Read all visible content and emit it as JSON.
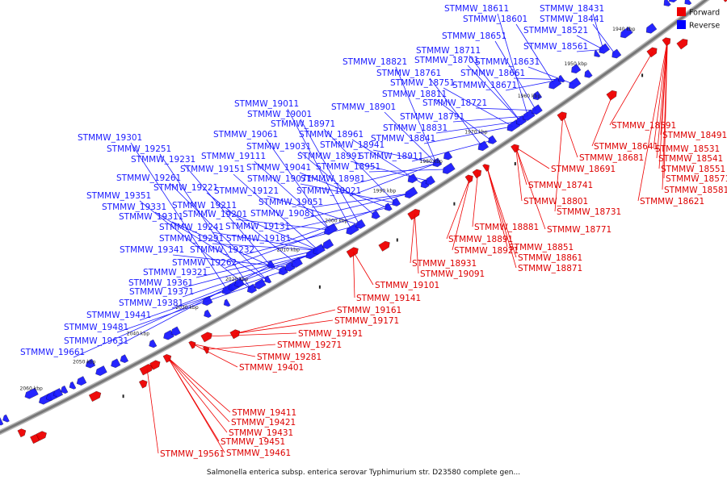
{
  "caption": "Salmonella enterica subsp. enterica serovar Typhimurium str. D23580 complete gen...",
  "legend": [
    {
      "label": "Forward",
      "color": "#ee0000"
    },
    {
      "label": "Reverse",
      "color": "#0000ff"
    }
  ],
  "colors": {
    "forward": "#ee0000",
    "reverse": "#1a1aff",
    "backbone": "#777777"
  },
  "ticks": [
    "1940 kbp",
    "1950 kbp",
    "1960 kbp",
    "1970 kbp",
    "1980 kbp",
    "1990 kbp",
    "2000 kbp",
    "2010 kbp",
    "2020 kbp",
    "2030 kbp",
    "2040 kbp",
    "2050 kbp",
    "2060 kbp"
  ],
  "reverse_genes": [
    "STMMW_18611",
    "STMMW_18431",
    "STMMW_18601",
    "STMMW_18441",
    "STMMW_18651",
    "STMMW_18521",
    "STMMW_18561",
    "STMMW_18711",
    "STMMW_18821",
    "STMMW_18701",
    "STMMW_18631",
    "STMMW_18761",
    "STMMW_18661",
    "STMMW_18751",
    "STMMW_18671",
    "STMMW_18811",
    "STMMW_19011",
    "STMMW_18721",
    "STMMW_18901",
    "STMMW_19001",
    "STMMW_18791",
    "STMMW_18971",
    "STMMW_19061",
    "STMMW_18961",
    "STMMW_18831",
    "STMMW_19301",
    "STMMW_18841",
    "STMMW_19031",
    "STMMW_18941",
    "STMMW_19251",
    "STMMW_19111",
    "STMMW_18991",
    "STMMW_18911",
    "STMMW_19231",
    "STMMW_19041",
    "STMMW_18951",
    "STMMW_19151",
    "STMMW_19071",
    "STMMW_18981",
    "STMMW_19261",
    "STMMW_19221",
    "STMMW_19121",
    "STMMW_19021",
    "STMMW_19351",
    "STMMW_19051",
    "STMMW_19211",
    "STMMW_19331",
    "STMMW_19081",
    "STMMW_19201",
    "STMMW_19311",
    "STMMW_19131",
    "STMMW_19241",
    "STMMW_19291",
    "STMMW_19181",
    "STMMW_19341",
    "STMMW_19232",
    "STMMW_19262",
    "STMMW_19321",
    "STMMW_19361",
    "STMMW_19371",
    "STMMW_19381",
    "STMMW_19441",
    "STMMW_19481",
    "STMMW_19631",
    "STMMW_19661"
  ],
  "forward_genes": [
    "STMMW_18491",
    "STMMW_18591",
    "STMMW_18531",
    "STMMW_18641",
    "STMMW_18541",
    "STMMW_18681",
    "STMMW_18551",
    "STMMW_18691",
    "STMMW_18571",
    "STMMW_18581",
    "STMMW_18741",
    "STMMW_18621",
    "STMMW_18801",
    "STMMW_18731",
    "STMMW_18771",
    "STMMW_18881",
    "STMMW_18891",
    "STMMW_18851",
    "STMMW_18921",
    "STMMW_18861",
    "STMMW_18871",
    "STMMW_18931",
    "STMMW_19091",
    "STMMW_19101",
    "STMMW_19141",
    "STMMW_19161",
    "STMMW_19171",
    "STMMW_19191",
    "STMMW_19271",
    "STMMW_19281",
    "STMMW_19401",
    "STMMW_19411",
    "STMMW_19421",
    "STMMW_19431",
    "STMMW_19451",
    "STMMW_19461",
    "STMMW_19561"
  ]
}
